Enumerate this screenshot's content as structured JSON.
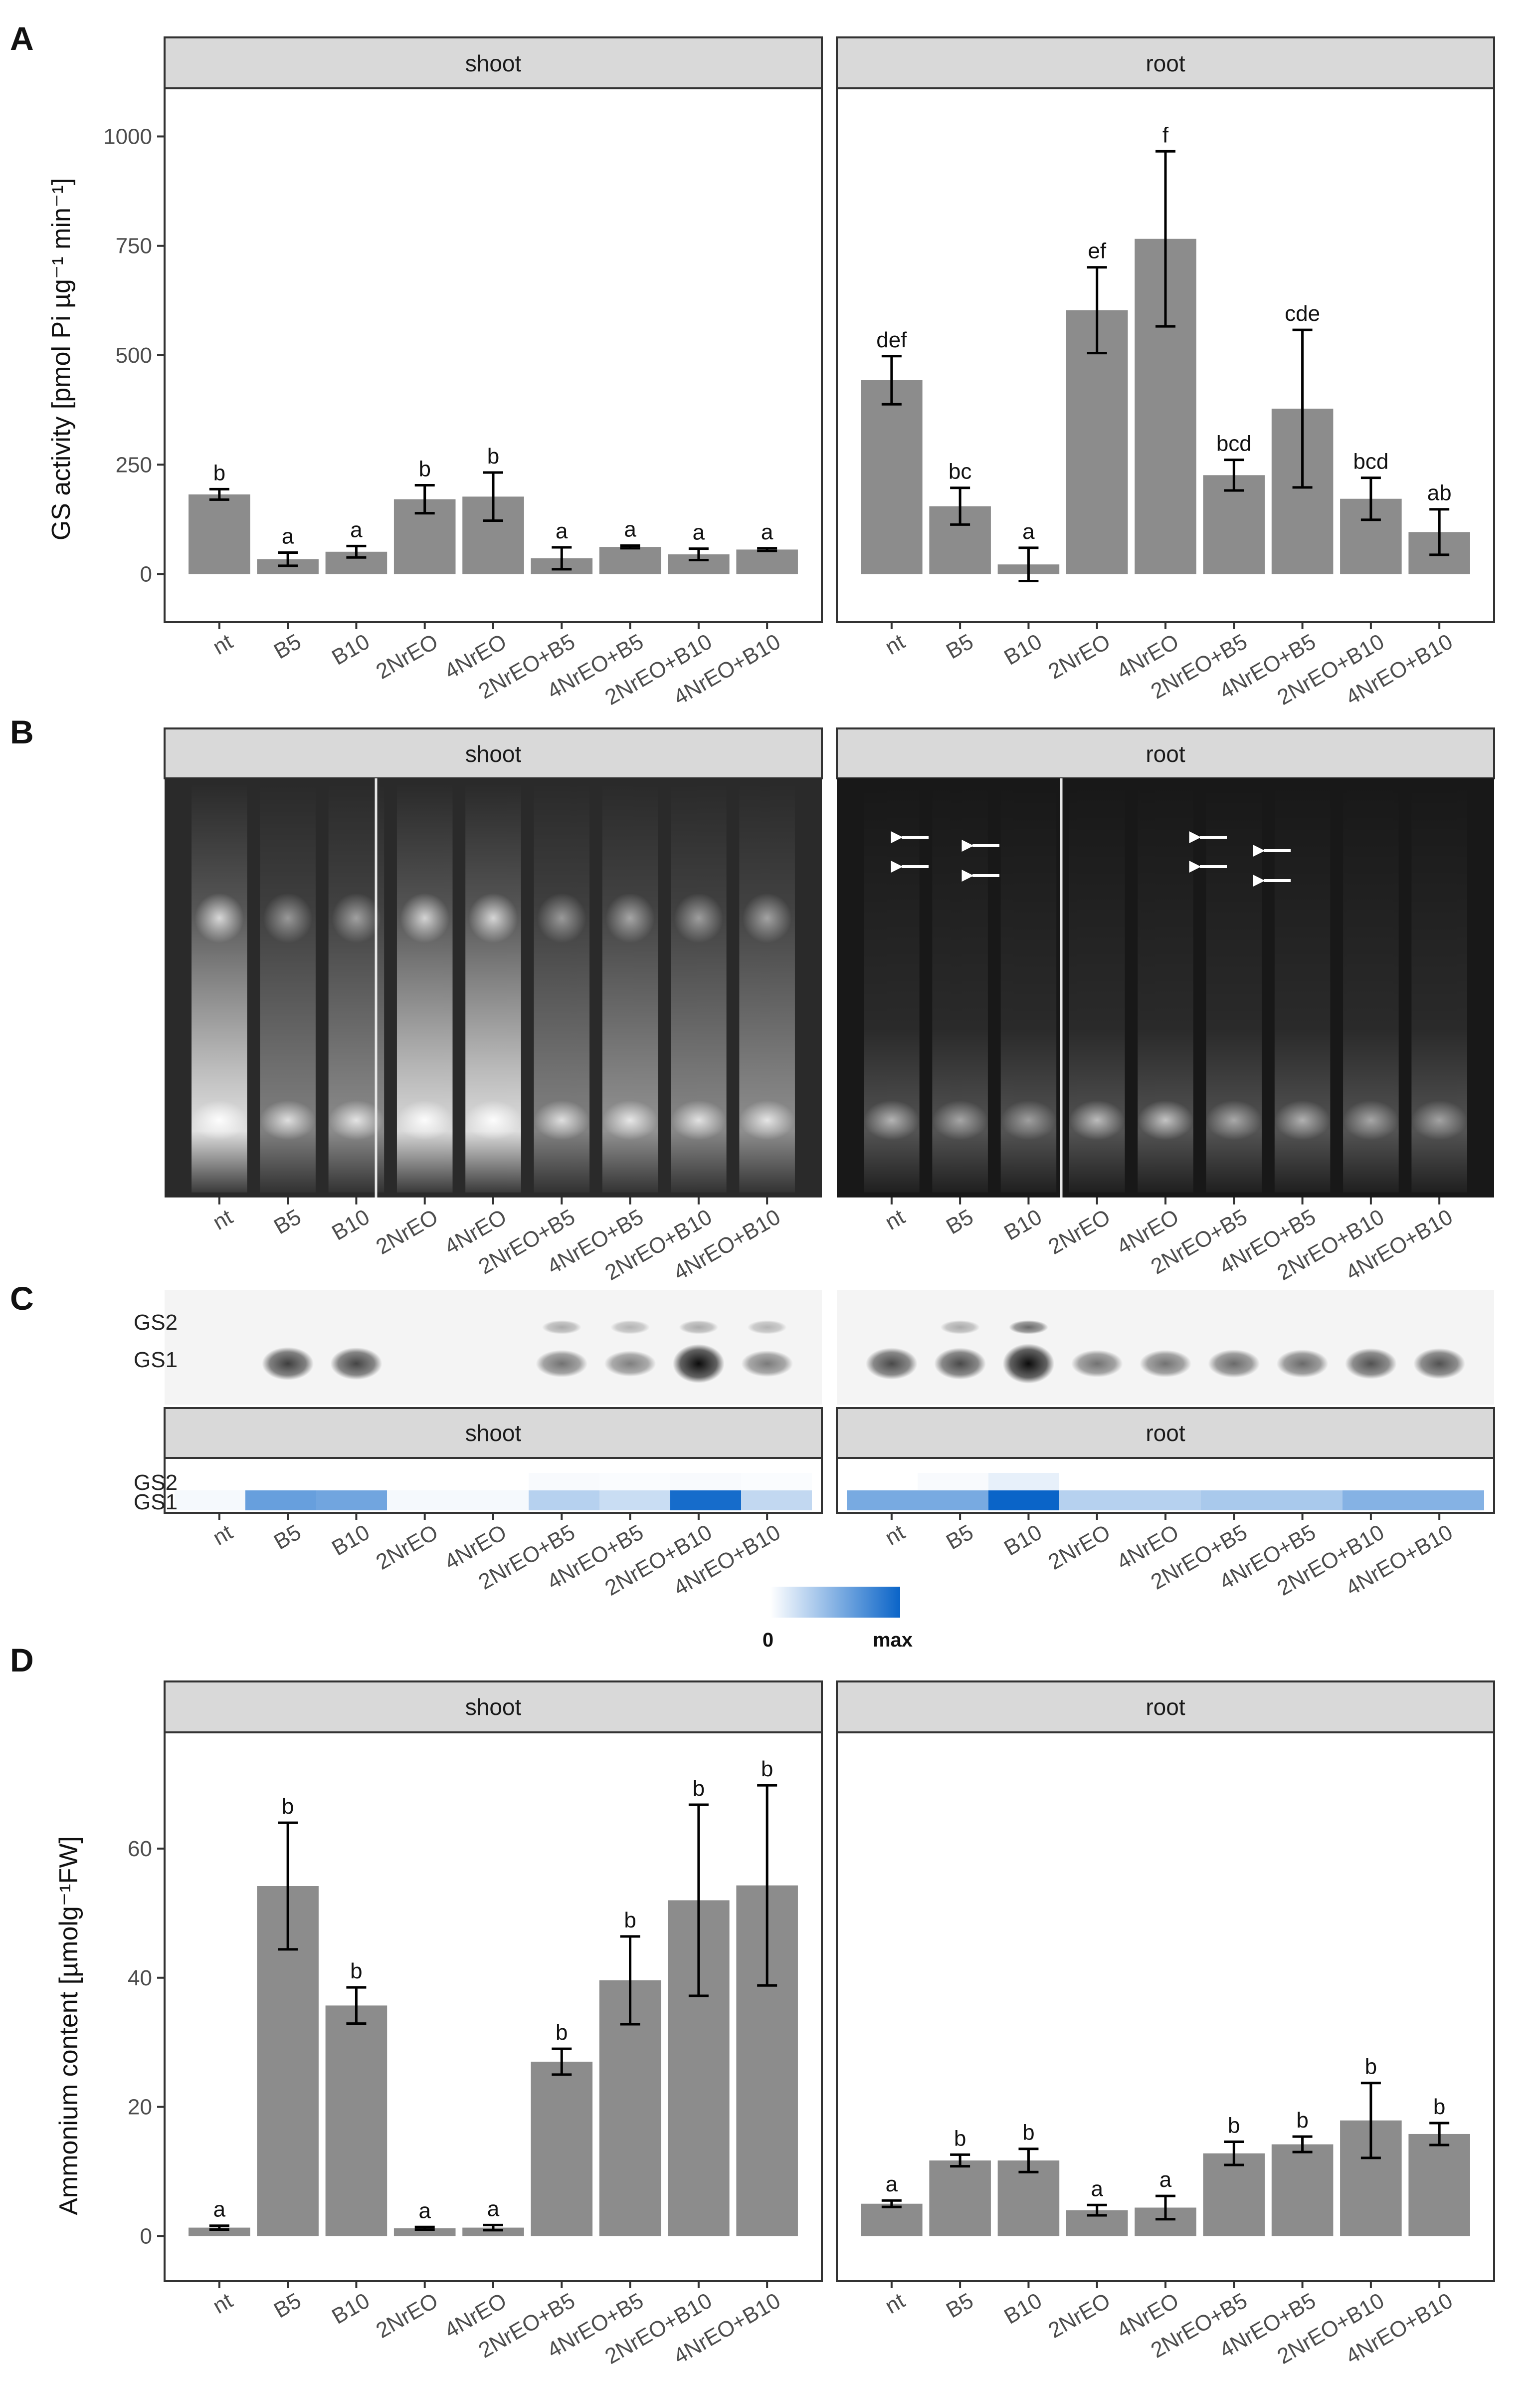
{
  "panel_letters": {
    "A": "A",
    "B": "B",
    "C": "C",
    "D": "D"
  },
  "facets": {
    "shoot": "shoot",
    "root": "root"
  },
  "categories": [
    "nt",
    "B5",
    "B10",
    "2NrEO",
    "4NrEO",
    "2NrEO+B5",
    "4NrEO+B5",
    "2NrEO+B10",
    "4NrEO+B10"
  ],
  "gs_labels": {
    "gs2": "GS2",
    "gs1": "GS1"
  },
  "colors": {
    "bar": "#8c8c8c",
    "heat_max": "#0a64c8",
    "heat_min": "#ffffff",
    "gel_background": "#1e1e1e",
    "blot_band": "#000000"
  },
  "gel_arrows": {
    "icon": "left-arrow-icon",
    "color": "#ffffff"
  },
  "scale": {
    "min_label": "0",
    "max_label": "max"
  },
  "chart_data": [
    {
      "type": "bar",
      "panel": "A",
      "facet": "shoot",
      "ylabel": "GS activity [pmol Pi µg⁻¹ min⁻¹]",
      "ylim": [
        -110,
        1110
      ],
      "yticks": [
        0,
        250,
        500,
        750,
        1000
      ],
      "categories": [
        "nt",
        "B5",
        "B10",
        "2NrEO",
        "4NrEO",
        "2NrEO+B5",
        "4NrEO+B5",
        "2NrEO+B10",
        "4NrEO+B10"
      ],
      "values": [
        182,
        34,
        51,
        171,
        177,
        36,
        62,
        45,
        56
      ],
      "errors": [
        12,
        15,
        13,
        32,
        55,
        25,
        3,
        13,
        3
      ],
      "letters": [
        "b",
        "a",
        "a",
        "b",
        "b",
        "a",
        "a",
        "a",
        "a"
      ],
      "grid": false
    },
    {
      "type": "bar",
      "panel": "A",
      "facet": "root",
      "ylim": [
        -110,
        1110
      ],
      "categories": [
        "nt",
        "B5",
        "B10",
        "2NrEO",
        "4NrEO",
        "2NrEO+B5",
        "4NrEO+B5",
        "2NrEO+B10",
        "4NrEO+B10"
      ],
      "values": [
        443,
        155,
        22,
        603,
        766,
        226,
        378,
        172,
        96
      ],
      "errors": [
        55,
        42,
        38,
        98,
        200,
        35,
        180,
        48,
        52
      ],
      "letters": [
        "def",
        "bc",
        "a",
        "ef",
        "f",
        "bcd",
        "cde",
        "bcd",
        "ab"
      ],
      "grid": false
    },
    {
      "type": "heatmap",
      "panel": "C",
      "facet": "shoot",
      "rows": [
        "GS2",
        "GS1"
      ],
      "categories": [
        "nt",
        "B5",
        "B10",
        "2NrEO",
        "4NrEO",
        "2NrEO+B5",
        "4NrEO+B5",
        "2NrEO+B10",
        "4NrEO+B10"
      ],
      "values": [
        [
          0.0,
          0.0,
          0.0,
          0.0,
          0.0,
          0.03,
          0.02,
          0.03,
          0.02
        ],
        [
          0.04,
          0.62,
          0.58,
          0.04,
          0.04,
          0.3,
          0.22,
          0.95,
          0.25
        ]
      ]
    },
    {
      "type": "heatmap",
      "panel": "C",
      "facet": "root",
      "rows": [
        "GS2",
        "GS1"
      ],
      "categories": [
        "nt",
        "B5",
        "B10",
        "2NrEO",
        "4NrEO",
        "2NrEO+B5",
        "4NrEO+B5",
        "2NrEO+B10",
        "4NrEO+B10"
      ],
      "values": [
        [
          0.0,
          0.03,
          0.1,
          0.0,
          0.0,
          0.0,
          0.0,
          0.0,
          0.0
        ],
        [
          0.55,
          0.55,
          1.0,
          0.3,
          0.3,
          0.35,
          0.35,
          0.5,
          0.5
        ]
      ]
    },
    {
      "type": "bar",
      "panel": "D",
      "facet": "shoot",
      "ylabel": "Ammonium content [µmolg⁻¹FW]",
      "ylim": [
        -7,
        78
      ],
      "yticks": [
        0,
        20,
        40,
        60
      ],
      "categories": [
        "nt",
        "B5",
        "B10",
        "2NrEO",
        "4NrEO",
        "2NrEO+B5",
        "4NrEO+B5",
        "2NrEO+B10",
        "4NrEO+B10"
      ],
      "values": [
        1.3,
        54.2,
        35.7,
        1.2,
        1.3,
        27.0,
        39.6,
        52.0,
        54.3
      ],
      "errors": [
        0.3,
        9.8,
        2.8,
        0.2,
        0.4,
        2.0,
        6.8,
        14.8,
        15.5
      ],
      "letters": [
        "a",
        "b",
        "b",
        "a",
        "a",
        "b",
        "b",
        "b",
        "b"
      ],
      "grid": false
    },
    {
      "type": "bar",
      "panel": "D",
      "facet": "root",
      "ylim": [
        -7,
        78
      ],
      "categories": [
        "nt",
        "B5",
        "B10",
        "2NrEO",
        "4NrEO",
        "2NrEO+B5",
        "4NrEO+B5",
        "2NrEO+B10",
        "4NrEO+B10"
      ],
      "values": [
        5.0,
        11.7,
        11.7,
        4.0,
        4.4,
        12.8,
        14.2,
        17.9,
        15.8
      ],
      "errors": [
        0.5,
        0.9,
        1.8,
        0.8,
        1.8,
        1.8,
        1.2,
        5.8,
        1.7
      ],
      "letters": [
        "a",
        "b",
        "b",
        "a",
        "a",
        "b",
        "b",
        "b",
        "b"
      ],
      "grid": false
    }
  ]
}
